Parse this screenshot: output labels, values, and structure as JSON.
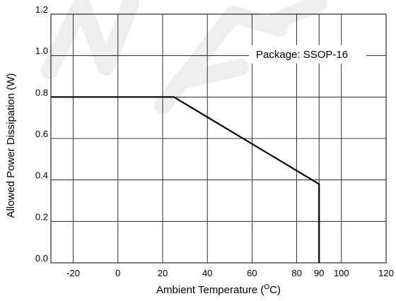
{
  "chart_data": {
    "type": "line",
    "title": "",
    "xlabel": "Ambient Temperature (",
    "xlabel_sup": "O",
    "xlabel_end": "C)",
    "ylabel": "Allowed Power Dissipation (W)",
    "xlim": [
      -30,
      120
    ],
    "ylim": [
      0.0,
      1.2
    ],
    "x_ticks": [
      -20,
      0,
      20,
      40,
      60,
      80,
      90,
      100,
      120
    ],
    "x_tick_labels": [
      "-20",
      "0",
      "20",
      "40",
      "60",
      "80",
      "90",
      "100",
      "120"
    ],
    "y_ticks": [
      0.0,
      0.2,
      0.4,
      0.6,
      0.8,
      1.0,
      1.2
    ],
    "y_tick_labels": [
      "0.0",
      "0.2",
      "0.4",
      "0.6",
      "0.8",
      "1.0",
      "1.2"
    ],
    "grid": true,
    "annotation": "Package: SSOP-16",
    "series": [
      {
        "x": [
          -30,
          25,
          90,
          90
        ],
        "y": [
          0.8,
          0.8,
          0.38,
          0.0
        ]
      }
    ],
    "colors": {
      "line": "#000000",
      "grid": "#000000",
      "background": "#ffffff"
    },
    "watermark": "NOT FOR NEW DESIGN"
  }
}
